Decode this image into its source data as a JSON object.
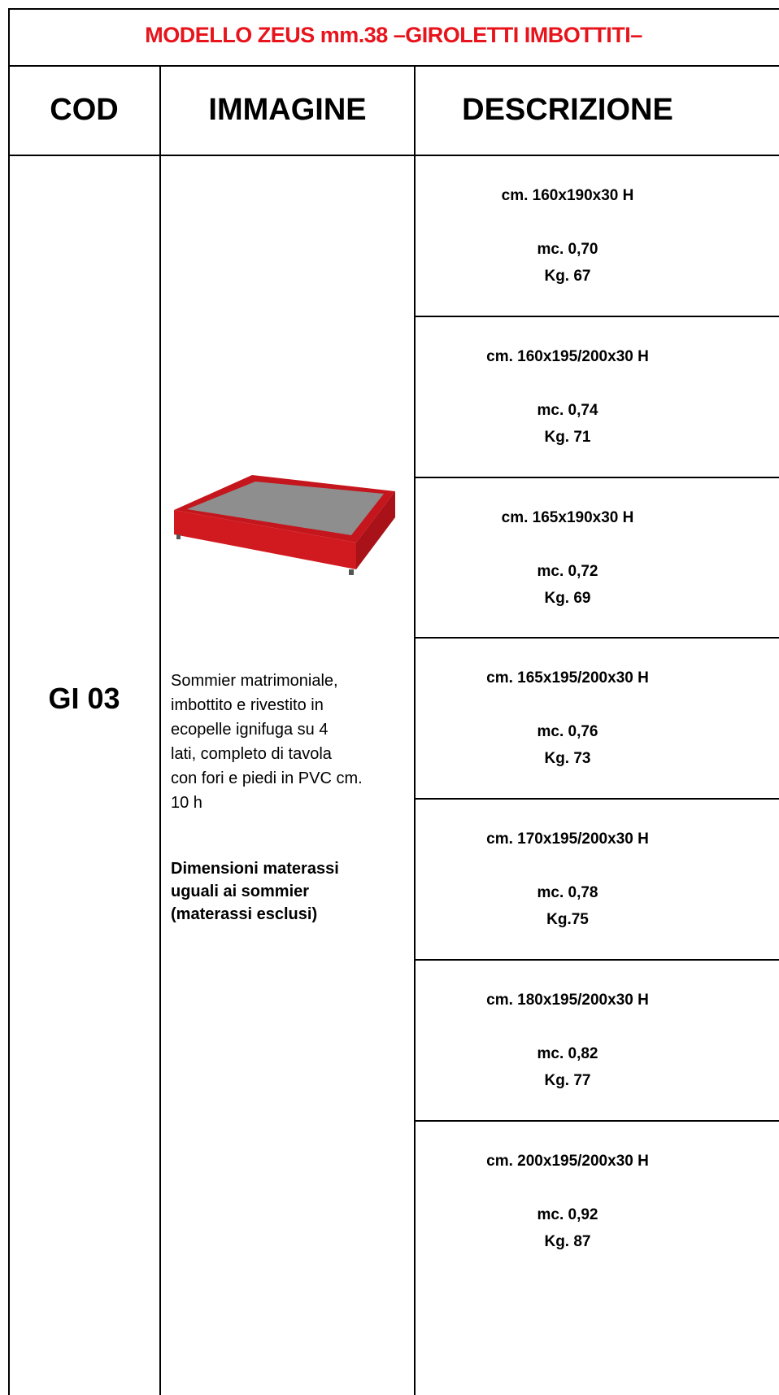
{
  "header": {
    "title": "MODELLO ZEUS mm.38 –GIROLETTI IMBOTTITI–"
  },
  "table": {
    "columns": [
      "COD",
      "IMMAGINE",
      "DESCRIZIONE"
    ],
    "code": "GI 03",
    "description": [
      "Sommier matrimoniale,",
      "imbottito e rivestito in",
      "ecopelle ignifuga  su 4",
      "lati, completo di tavola",
      "con fori e piedi in PVC cm.",
      "10 h"
    ],
    "note": [
      "Dimensioni materassi",
      "uguali ai sommier",
      "(materassi esclusi)"
    ],
    "items": [
      {
        "size": "cm. 160x190x30 H",
        "volume": "mc. 0,70",
        "weight": "Kg. 67"
      },
      {
        "size": "cm. 160x195/200x30 H",
        "volume": "mc. 0,74",
        "weight": "Kg. 71"
      },
      {
        "size": "cm. 165x190x30 H",
        "volume": "mc. 0,72",
        "weight": "Kg. 69"
      },
      {
        "size": "cm. 165x195/200x30 H",
        "volume": "mc. 0,76",
        "weight": "Kg. 73"
      },
      {
        "size": "cm. 170x195/200x30 H",
        "volume": "mc. 0,78",
        "weight": "Kg.75"
      },
      {
        "size": "cm. 180x195/200x30 H",
        "volume": "mc. 0,82",
        "weight": "Kg. 77"
      },
      {
        "size": "cm. 200x195/200x30 H",
        "volume": "mc. 0,92",
        "weight": "Kg. 87"
      }
    ]
  }
}
